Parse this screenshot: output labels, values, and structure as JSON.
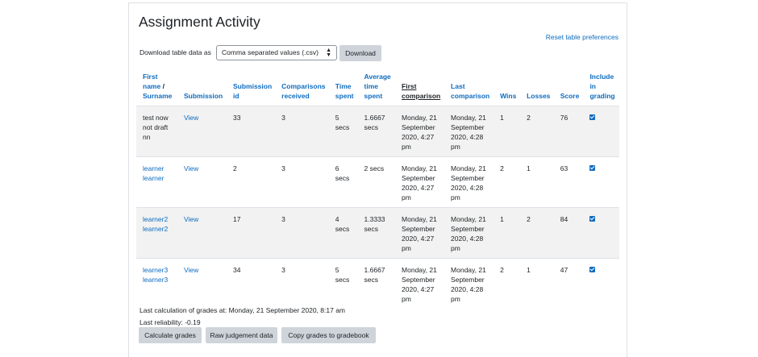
{
  "page": {
    "title": "Assignment Activity",
    "reset_link": "Reset table preferences",
    "download_label": "Download table data as",
    "download_format": "Comma separated values (.csv)",
    "download_button": "Download"
  },
  "table": {
    "headers": {
      "first_name": "First name",
      "slash": "/",
      "surname": "Surname",
      "submission": "Submission",
      "submission_id": "Submission id",
      "comparisons_received": "Comparisons received",
      "time_spent": "Time spent",
      "average_time_spent": "Average time spent",
      "first_comparison": "First comparison",
      "last_comparison": "Last comparison",
      "wins": "Wins",
      "losses": "Losses",
      "score": "Score",
      "include_in_grading": "Include in grading"
    },
    "rows": [
      {
        "name": "test now not draft nn",
        "submission": "View",
        "submission_id": "33",
        "comparisons": "3",
        "time_spent": "5 secs",
        "average_time": "1.6667 secs",
        "first_comparison": "Monday, 21 September 2020, 4:27 pm",
        "last_comparison": "Monday, 21 September 2020, 4:28 pm",
        "wins": "1",
        "losses": "2",
        "score": "76",
        "include": true
      },
      {
        "name": "learner learner",
        "submission": "View",
        "submission_id": "2",
        "comparisons": "3",
        "time_spent": "6 secs",
        "average_time": "2 secs",
        "first_comparison": "Monday, 21 September 2020, 4:27 pm",
        "last_comparison": "Monday, 21 September 2020, 4:28 pm",
        "wins": "2",
        "losses": "1",
        "score": "63",
        "include": true
      },
      {
        "name": "learner2 learner2",
        "submission": "View",
        "submission_id": "17",
        "comparisons": "3",
        "time_spent": "4 secs",
        "average_time": "1.3333 secs",
        "first_comparison": "Monday, 21 September 2020, 4:27 pm",
        "last_comparison": "Monday, 21 September 2020, 4:28 pm",
        "wins": "1",
        "losses": "2",
        "score": "84",
        "include": true
      },
      {
        "name": "learner3 learner3",
        "submission": "View",
        "submission_id": "34",
        "comparisons": "3",
        "time_spent": "5 secs",
        "average_time": "1.6667 secs",
        "first_comparison": "Monday, 21 September 2020, 4:27 pm",
        "last_comparison": "Monday, 21 September 2020, 4:28 pm",
        "wins": "2",
        "losses": "1",
        "score": "47",
        "include": true
      }
    ]
  },
  "footer": {
    "last_calculation": "Last calculation of grades at: Monday, 21 September 2020, 8:17 am",
    "last_reliability": "Last reliability: -0.19",
    "calculate_button": "Calculate grades",
    "raw_button": "Raw judgement data",
    "copy_button": "Copy grades to gradebook"
  }
}
